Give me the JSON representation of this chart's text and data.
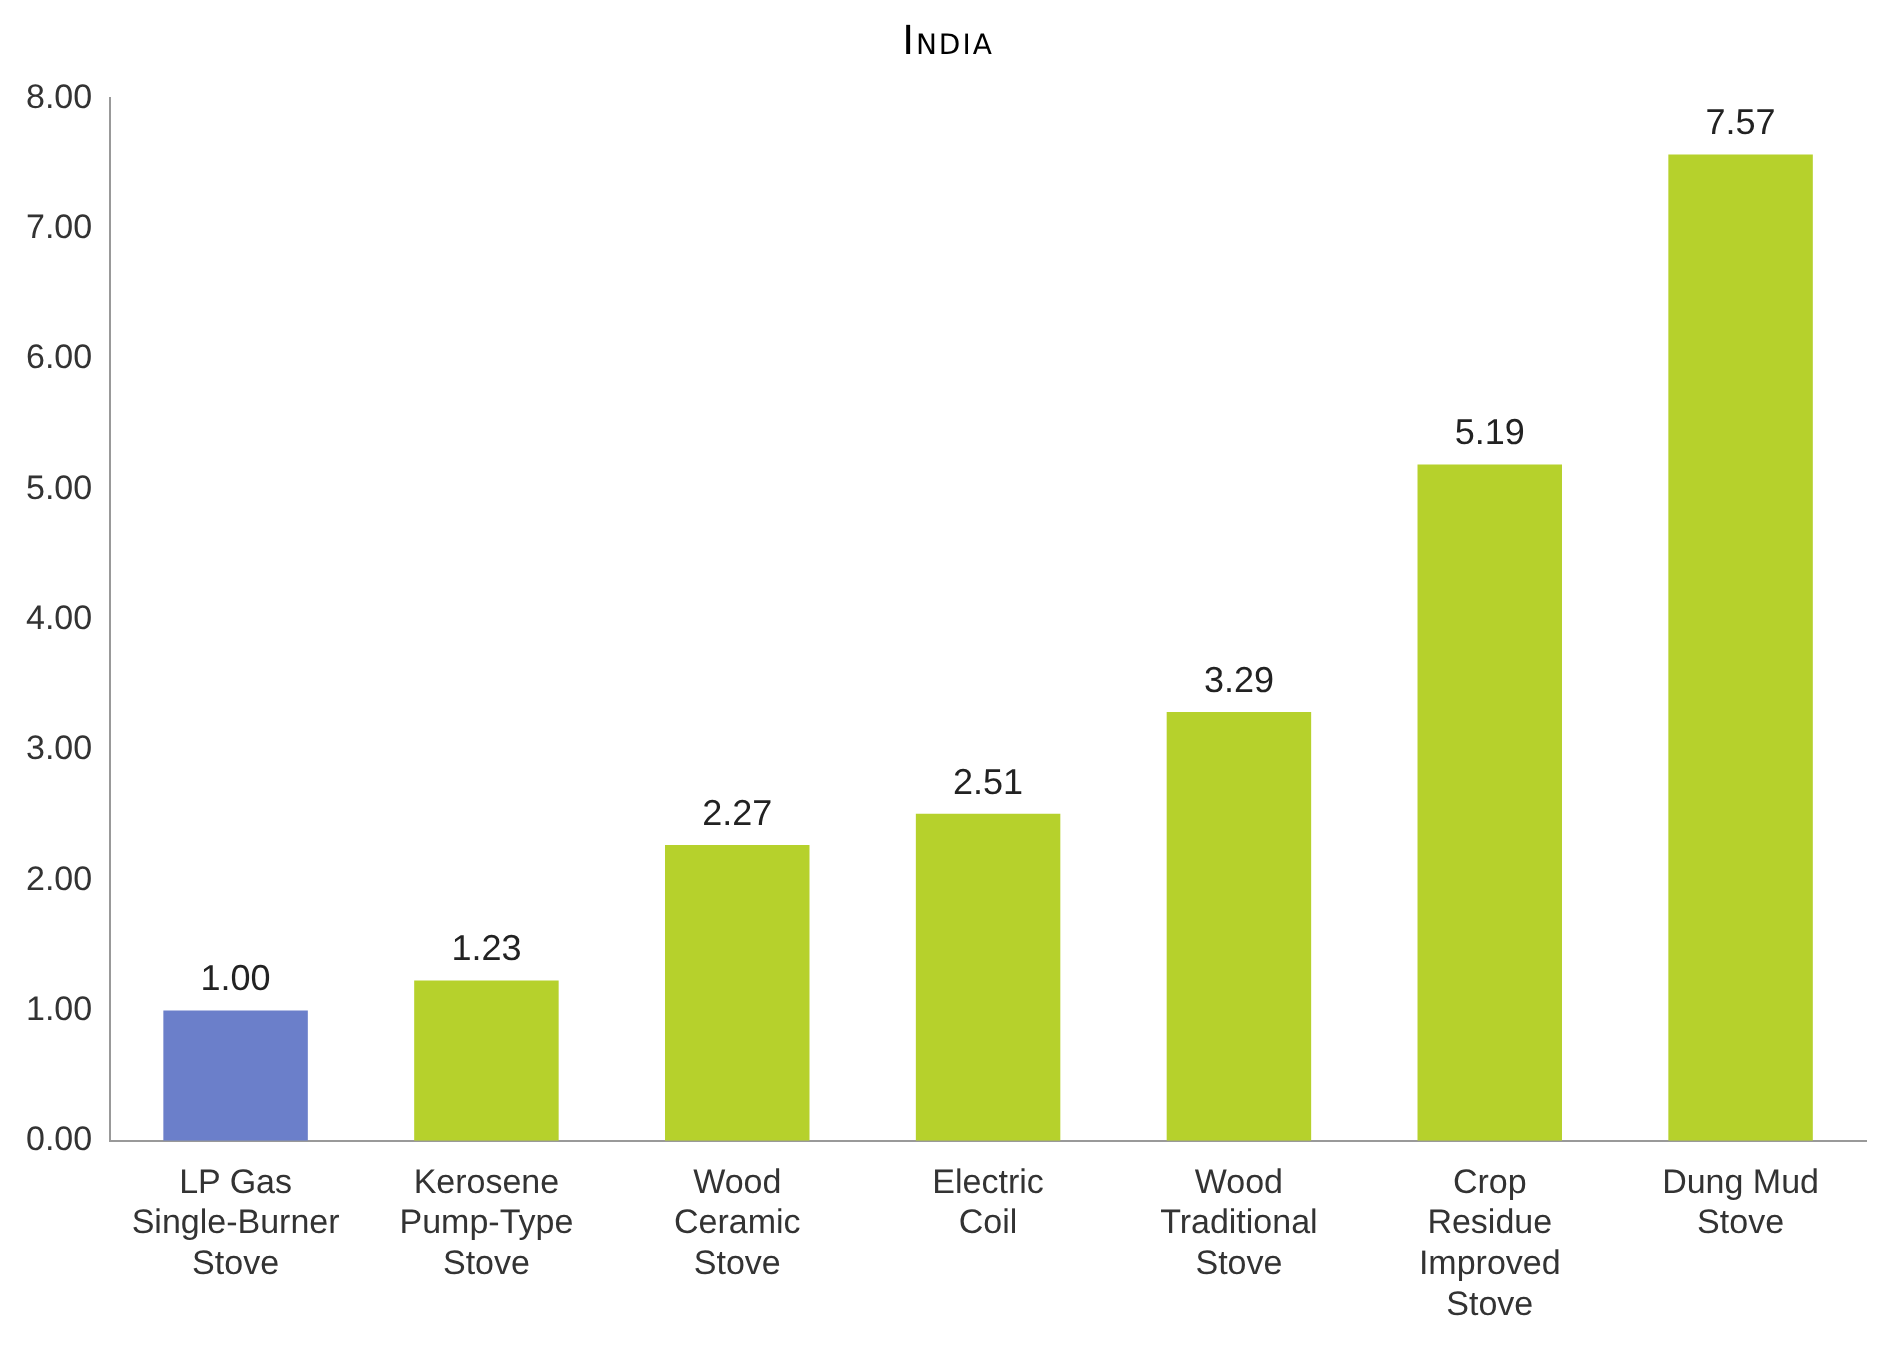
{
  "chart_data": {
    "type": "bar",
    "title": "India",
    "categories": [
      "LP Gas Single-Burner Stove",
      "Kerosene Pump-Type Stove",
      "Wood Ceramic Stove",
      "Electric Coil",
      "Wood Traditional Stove",
      "Crop Residue Improved Stove",
      "Dung Mud Stove"
    ],
    "values": [
      1.0,
      1.23,
      2.27,
      2.51,
      3.29,
      5.19,
      7.57
    ],
    "colors": [
      "#6b7fca",
      "#b6d12c",
      "#b6d12c",
      "#b6d12c",
      "#b6d12c",
      "#b6d12c",
      "#b6d12c"
    ],
    "value_labels": [
      "1.00",
      "1.23",
      "2.27",
      "2.51",
      "3.29",
      "5.19",
      "7.57"
    ],
    "ylim": [
      0,
      8
    ],
    "yticks": [
      {
        "value": 0,
        "label": "0.00"
      },
      {
        "value": 1,
        "label": "1.00"
      },
      {
        "value": 2,
        "label": "2.00"
      },
      {
        "value": 3,
        "label": "3.00"
      },
      {
        "value": 4,
        "label": "4.00"
      },
      {
        "value": 5,
        "label": "5.00"
      },
      {
        "value": 6,
        "label": "6.00"
      },
      {
        "value": 7,
        "label": "7.00"
      },
      {
        "value": 8,
        "label": "8.00"
      }
    ],
    "grid": false,
    "legend": false
  }
}
